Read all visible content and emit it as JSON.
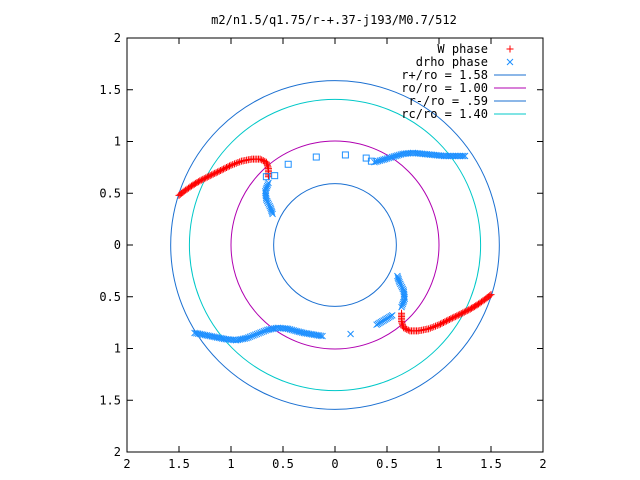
{
  "chart_data": {
    "type": "scatter",
    "title": "m2/n1.5/q1.75/r-+.37-j193/M0.7/512",
    "xlim": [
      -2,
      2
    ],
    "ylim": [
      -2,
      2
    ],
    "x_ticks": [
      -2,
      -1.5,
      -1,
      -0.5,
      0,
      0.5,
      1,
      1.5,
      2
    ],
    "y_ticks": [
      -2,
      -1.5,
      -1,
      -0.5,
      0,
      0.5,
      1,
      1.5,
      2
    ],
    "x_tick_labels": [
      "2",
      "1.5",
      "1",
      "0.5",
      "0",
      "0.5",
      "1",
      "1.5",
      "2"
    ],
    "y_tick_labels": [
      "2",
      "1.5",
      "1",
      "0.5",
      "0",
      "0.5",
      "1",
      "1.5",
      "2"
    ],
    "xlabel": "",
    "ylabel": "",
    "grid": false,
    "legend_position": "top-right",
    "series": [
      {
        "name": "W phase",
        "kind": "points",
        "marker": "plus",
        "color": "#ff0000",
        "points": [
          [
            -1.5,
            0.48
          ],
          [
            -1.45,
            0.52
          ],
          [
            -1.38,
            0.57
          ],
          [
            -1.3,
            0.62
          ],
          [
            -1.2,
            0.67
          ],
          [
            -1.1,
            0.72
          ],
          [
            -1.0,
            0.77
          ],
          [
            -0.9,
            0.81
          ],
          [
            -0.8,
            0.83
          ],
          [
            -0.72,
            0.83
          ],
          [
            -0.66,
            0.8
          ],
          [
            -0.64,
            0.74
          ],
          [
            -0.64,
            0.66
          ],
          [
            1.5,
            -0.48
          ],
          [
            1.45,
            -0.52
          ],
          [
            1.38,
            -0.57
          ],
          [
            1.3,
            -0.62
          ],
          [
            1.2,
            -0.67
          ],
          [
            1.1,
            -0.72
          ],
          [
            1.0,
            -0.77
          ],
          [
            0.9,
            -0.81
          ],
          [
            0.8,
            -0.83
          ],
          [
            0.72,
            -0.83
          ],
          [
            0.66,
            -0.8
          ],
          [
            0.64,
            -0.74
          ],
          [
            0.64,
            -0.66
          ]
        ]
      },
      {
        "name": "drho phase",
        "kind": "points",
        "marker": "x",
        "color": "#1e90ff",
        "points": [
          [
            -0.64,
            0.6
          ],
          [
            -0.67,
            0.52
          ],
          [
            -0.66,
            0.44
          ],
          [
            -0.62,
            0.36
          ],
          [
            -0.6,
            0.3
          ],
          [
            0.38,
            0.8
          ],
          [
            0.45,
            0.82
          ],
          [
            0.55,
            0.85
          ],
          [
            0.65,
            0.88
          ],
          [
            0.75,
            0.89
          ],
          [
            0.85,
            0.88
          ],
          [
            0.95,
            0.87
          ],
          [
            1.05,
            0.86
          ],
          [
            1.15,
            0.86
          ],
          [
            1.25,
            0.86
          ],
          [
            0.6,
            -0.3
          ],
          [
            0.62,
            -0.36
          ],
          [
            0.66,
            -0.44
          ],
          [
            0.67,
            -0.52
          ],
          [
            0.64,
            -0.6
          ],
          [
            -1.35,
            -0.85
          ],
          [
            -1.25,
            -0.87
          ],
          [
            -1.15,
            -0.89
          ],
          [
            -1.05,
            -0.91
          ],
          [
            -0.95,
            -0.92
          ],
          [
            -0.85,
            -0.9
          ],
          [
            -0.75,
            -0.86
          ],
          [
            -0.65,
            -0.82
          ],
          [
            -0.55,
            -0.8
          ],
          [
            -0.45,
            -0.81
          ],
          [
            -0.38,
            -0.83
          ],
          [
            -0.3,
            -0.85
          ],
          [
            -0.12,
            -0.88
          ],
          [
            0.15,
            -0.86
          ],
          [
            0.4,
            -0.77
          ],
          [
            0.55,
            -0.68
          ]
        ]
      },
      {
        "name": "drho phase",
        "kind": "hollow",
        "marker": "square",
        "color": "#1e90ff",
        "points": [
          [
            -0.66,
            0.66
          ],
          [
            -0.58,
            0.67
          ],
          [
            -0.45,
            0.78
          ],
          [
            -0.18,
            0.85
          ],
          [
            0.1,
            0.87
          ],
          [
            0.3,
            0.84
          ],
          [
            0.35,
            0.81
          ]
        ]
      },
      {
        "name": "r+/ro = 1.58",
        "kind": "circle",
        "radius": 1.58,
        "color": "#1a6fd1"
      },
      {
        "name": "ro/ro = 1.00",
        "kind": "circle",
        "radius": 1.0,
        "color": "#b000b0"
      },
      {
        "name": "r-/ro = .59",
        "kind": "circle",
        "radius": 0.59,
        "color": "#1a6fd1"
      },
      {
        "name": "rc/ro = 1.40",
        "kind": "circle",
        "radius": 1.4,
        "color": "#00c8c8"
      }
    ],
    "legend": [
      {
        "label": "W phase",
        "marker": "plus",
        "color": "#ff0000"
      },
      {
        "label": "drho phase",
        "marker": "x",
        "color": "#1e90ff"
      },
      {
        "label": "r+/ro = 1.58",
        "marker": "line",
        "color": "#1a6fd1"
      },
      {
        "label": "ro/ro = 1.00",
        "marker": "line",
        "color": "#b000b0"
      },
      {
        "label": "r-/ro = .59",
        "marker": "line",
        "color": "#1a6fd1"
      },
      {
        "label": "rc/ro = 1.40",
        "marker": "line",
        "color": "#00c8c8"
      }
    ]
  }
}
